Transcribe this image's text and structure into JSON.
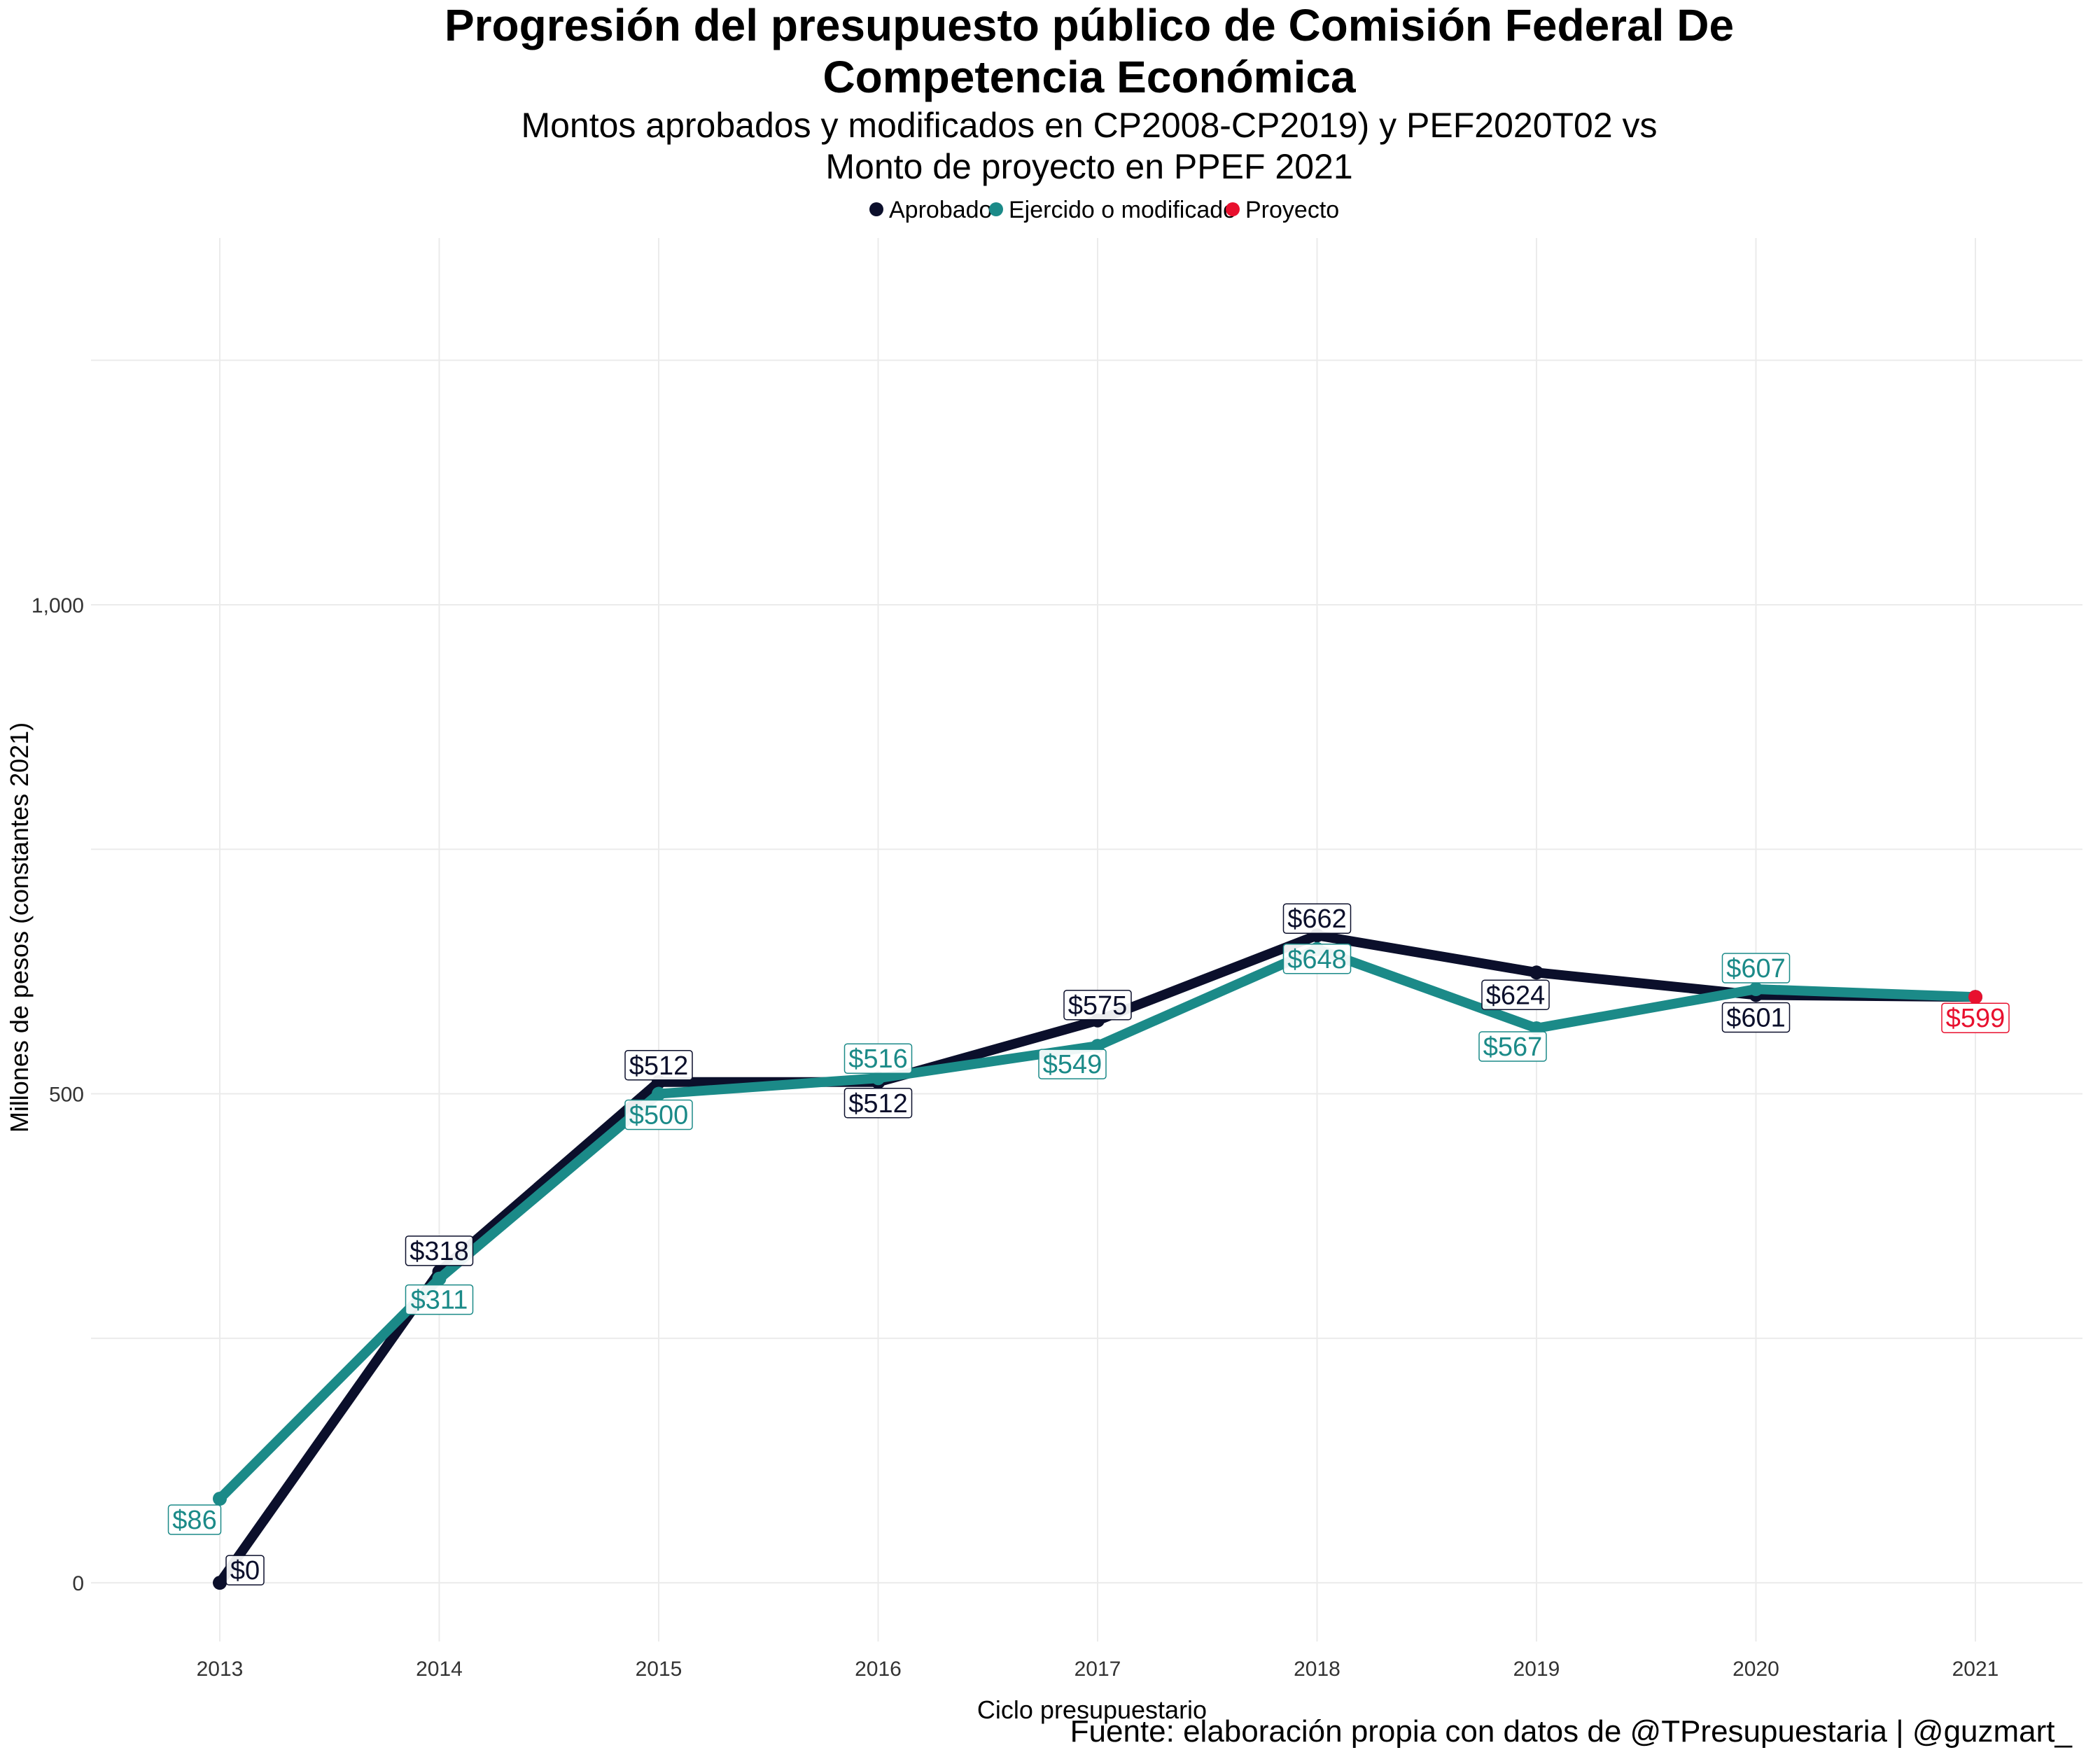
{
  "chart_data": {
    "type": "line",
    "title_line1": "Progresión del presupuesto público de Comisión Federal De",
    "title_line2": "Competencia Económica",
    "subtitle_line1": "Montos aprobados y modificados en CP2008-CP2019) y PEF2020T02 vs",
    "subtitle_line2": "Monto de proyecto en PPEF 2021",
    "xlabel": "Ciclo presupuestario",
    "ylabel": "Millones de pesos (constantes 2021)",
    "caption": "Fuente: elaboración propia con datos de @TPresupuestaria | @guzmart_",
    "x": [
      "2013",
      "2014",
      "2015",
      "2016",
      "2017",
      "2018",
      "2019",
      "2020",
      "2021"
    ],
    "y_ticks": [
      0,
      500,
      1000
    ],
    "y_tick_labels": [
      "0",
      "500",
      "1,000"
    ],
    "ylim": [
      -60,
      1375
    ],
    "grid": true,
    "legend_position": "top",
    "legend": [
      "Aprobado",
      "Ejercido o modificado",
      "Proyecto"
    ],
    "series": [
      {
        "name": "Aprobado",
        "color": "#0b0f2b",
        "values": [
          0,
          318,
          512,
          512,
          575,
          662,
          624,
          601,
          599
        ],
        "labels": [
          "$0",
          "$318",
          "$512",
          "$512",
          "$575",
          "$662",
          "$624",
          "$601",
          null
        ]
      },
      {
        "name": "Ejercido o modificado",
        "color": "#1b8a88",
        "values": [
          86,
          311,
          500,
          516,
          549,
          648,
          567,
          607,
          599
        ],
        "labels": [
          "$86",
          "$311",
          "$500",
          "$516",
          "$549",
          "$648",
          "$567",
          "$607",
          null
        ]
      },
      {
        "name": "Proyecto",
        "color": "#e8102e",
        "values": [
          null,
          null,
          null,
          null,
          null,
          null,
          null,
          null,
          599
        ],
        "labels": [
          null,
          null,
          null,
          null,
          null,
          null,
          null,
          null,
          "$599"
        ]
      }
    ]
  }
}
